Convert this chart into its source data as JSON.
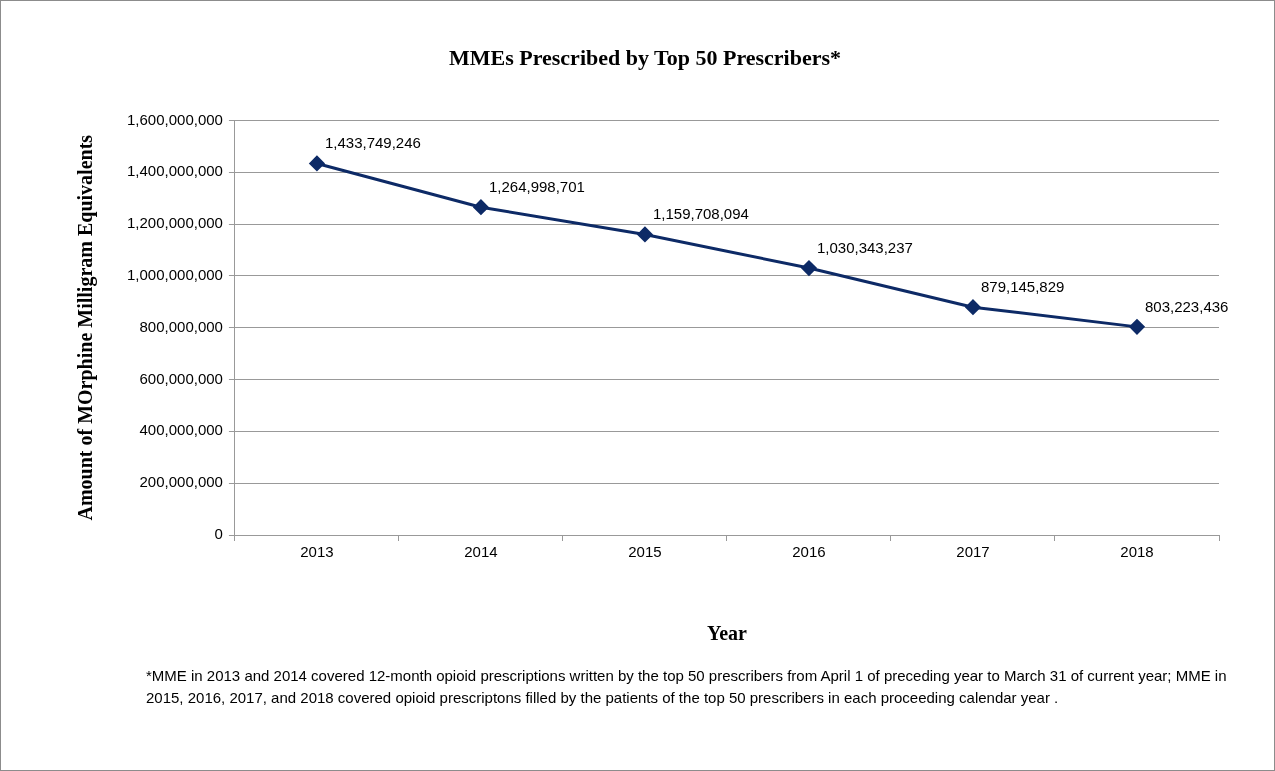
{
  "chart_data": {
    "type": "line",
    "title": "MMEs Prescribed by Top 50 Prescribers*",
    "xlabel": "Year",
    "ylabel": "Amount of MOrphine Milligram Equivalents",
    "categories": [
      "2013",
      "2014",
      "2015",
      "2016",
      "2017",
      "2018"
    ],
    "series": [
      {
        "color": "#0d2a66",
        "values": [
          1433749246,
          1264998701,
          1159708094,
          1030343237,
          879145829,
          803223436
        ],
        "value_labels": [
          "1,433,749,246",
          "1,264,998,701",
          "1,159,708,094",
          "1,030,343,237",
          "879,145,829",
          "803,223,436"
        ]
      }
    ],
    "ylim": [
      0,
      1600000000
    ],
    "yticks": [
      {
        "value": 0,
        "label": "0"
      },
      {
        "value": 200000000,
        "label": "200,000,000"
      },
      {
        "value": 400000000,
        "label": "400,000,000"
      },
      {
        "value": 600000000,
        "label": "600,000,000"
      },
      {
        "value": 800000000,
        "label": "800,000,000"
      },
      {
        "value": 1000000000,
        "label": "1,000,000,000"
      },
      {
        "value": 1200000000,
        "label": "1,200,000,000"
      },
      {
        "value": 1400000000,
        "label": "1,400,000,000"
      },
      {
        "value": 1600000000,
        "label": "1,600,000,000"
      }
    ],
    "grid": "y",
    "marker": "diamond",
    "line_style": "solid",
    "legend": false,
    "annotations": [
      "*MME in 2013 and 2014 covered 12-month opioid prescriptions written by the top 50 prescribers from April 1 of preceding year to March 31 of current year;  MME in 2015, 2016, 2017, and 2018 covered opioid prescriptons filled  by the patients of the top 50 prescribers in each proceeding calendar year ."
    ]
  }
}
